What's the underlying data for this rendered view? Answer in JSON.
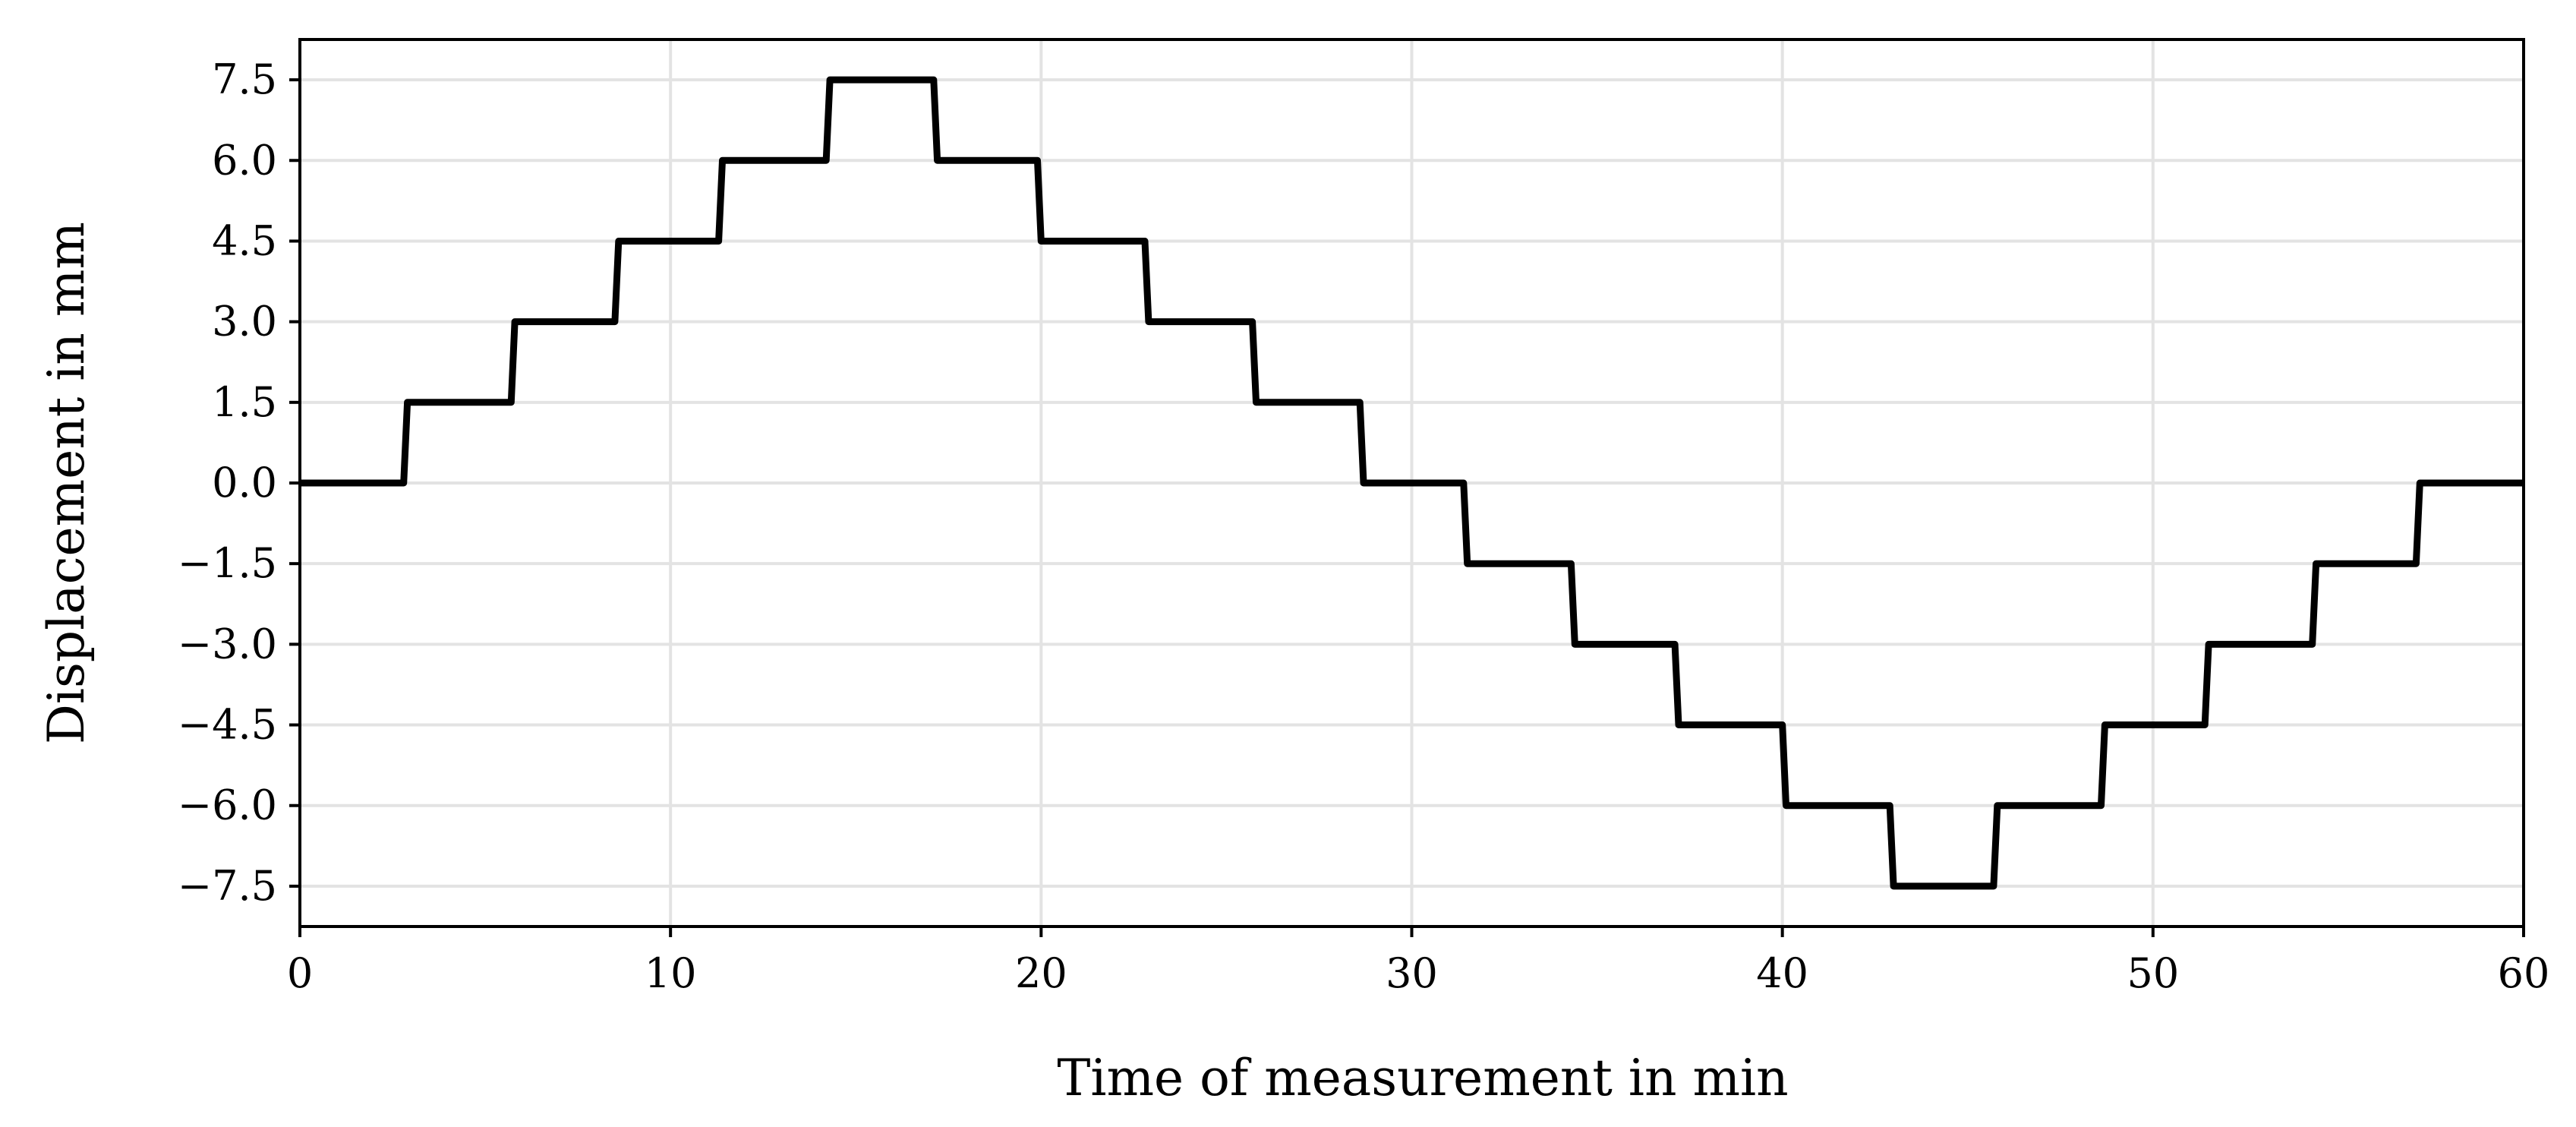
{
  "chart_data": {
    "type": "line",
    "title": "",
    "xlabel": "Time of measurement in min",
    "ylabel": "Displacement in mm",
    "xlim": [
      0,
      60
    ],
    "ylim": [
      -8.25,
      8.25
    ],
    "grid": true,
    "legend": "none",
    "x_ticks": [
      0,
      10,
      20,
      30,
      40,
      50,
      60
    ],
    "x_tick_labels": [
      "0",
      "10",
      "20",
      "30",
      "40",
      "50",
      "60"
    ],
    "y_ticks": [
      7.5,
      6.0,
      4.5,
      3.0,
      1.5,
      0.0,
      -1.5,
      -3.0,
      -4.5,
      -6.0,
      -7.5
    ],
    "y_tick_labels": [
      "7.5",
      "6.0",
      "4.5",
      "3.0",
      "1.5",
      "0.0",
      "−1.5",
      "−3.0",
      "−4.5",
      "−6.0",
      "−7.5"
    ],
    "colors": {
      "line": "#000000",
      "grid": "#e3e3e3",
      "axes": "#000000"
    },
    "series": [
      {
        "x": [
          0,
          2.8,
          2.9,
          5.7,
          5.8,
          8.5,
          8.6,
          11.3,
          11.4,
          14.2,
          14.3,
          17.1,
          17.2,
          19.9,
          20.0,
          22.8,
          22.9,
          25.7,
          25.8,
          28.6,
          28.7,
          31.4,
          31.5,
          34.3,
          34.4,
          37.1,
          37.2,
          40.0,
          40.1,
          42.9,
          43.0,
          45.7,
          45.8,
          48.6,
          48.7,
          51.4,
          51.5,
          54.3,
          54.4,
          57.1,
          57.2,
          60.0
        ],
        "y": [
          0,
          0,
          1.5,
          1.5,
          3.0,
          3.0,
          4.5,
          4.5,
          6.0,
          6.0,
          7.5,
          7.5,
          6.0,
          6.0,
          4.5,
          4.5,
          3.0,
          3.0,
          1.5,
          1.5,
          0,
          0,
          -1.5,
          -1.5,
          -3.0,
          -3.0,
          -4.5,
          -4.5,
          -6.0,
          -6.0,
          -7.5,
          -7.5,
          -6.0,
          -6.0,
          -4.5,
          -4.5,
          -3.0,
          -3.0,
          -1.5,
          -1.5,
          0,
          0
        ]
      }
    ]
  }
}
